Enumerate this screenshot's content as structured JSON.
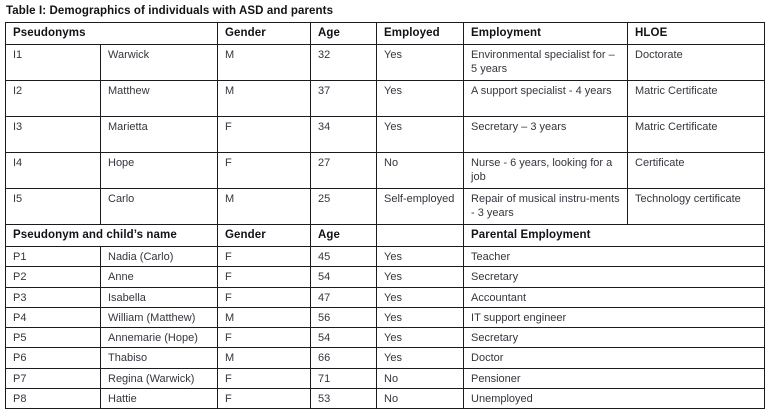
{
  "title": "Table I: Demographics of individuals with ASD and parents",
  "colors": {
    "background": "#ffffff",
    "border": "#1b1b1f",
    "header_text": "#121216",
    "body_text": "#35353d"
  },
  "table": {
    "header_individuals": {
      "pseudonyms": "Pseudonyms",
      "gender": "Gender",
      "age": "Age",
      "employed": "Employed",
      "employment": "Employment",
      "hloe": "HLOE"
    },
    "individuals": [
      {
        "id": "I1",
        "name": "Warwick",
        "gender": "M",
        "age": "32",
        "employed": "Yes",
        "employment": "Environmental specialist for – 5 years",
        "hloe": "Doctorate"
      },
      {
        "id": "I2",
        "name": "Matthew",
        "gender": "M",
        "age": "37",
        "employed": "Yes",
        "employment": "A support specialist - 4 years",
        "hloe": "Matric Certificate"
      },
      {
        "id": "I3",
        "name": "Marietta",
        "gender": "F",
        "age": "34",
        "employed": "Yes",
        "employment": "Secretary – 3 years",
        "hloe": "Matric Certificate"
      },
      {
        "id": "I4",
        "name": "Hope",
        "gender": "F",
        "age": "27",
        "employed": "No",
        "employment": "Nurse - 6 years, looking for a job",
        "hloe": "Certificate"
      },
      {
        "id": "I5",
        "name": "Carlo",
        "gender": "M",
        "age": "25",
        "employed": "Self-employed",
        "employment": "Repair of musical instru-ments - 3 years",
        "hloe": "Technology certificate"
      }
    ],
    "header_parents": {
      "pseudonym_child": "Pseudonym and child’s name",
      "gender": "Gender",
      "age": "Age",
      "employed": "",
      "parental_employment": "Parental Employment"
    },
    "parents": [
      {
        "id": "P1",
        "name": "Nadia (Carlo)",
        "gender": "F",
        "age": "45",
        "employed": "Yes",
        "employment": "Teacher"
      },
      {
        "id": "P2",
        "name": "Anne",
        "gender": "F",
        "age": "54",
        "employed": "Yes",
        "employment": "Secretary"
      },
      {
        "id": "P3",
        "name": "Isabella",
        "gender": "F",
        "age": "47",
        "employed": "Yes",
        "employment": "Accountant"
      },
      {
        "id": "P4",
        "name": "William (Matthew)",
        "gender": "M",
        "age": "56",
        "employed": "Yes",
        "employment": "IT support engineer"
      },
      {
        "id": "P5",
        "name": "Annemarie (Hope)",
        "gender": "F",
        "age": "54",
        "employed": "Yes",
        "employment": "Secretary"
      },
      {
        "id": "P6",
        "name": "Thabiso",
        "gender": "M",
        "age": "66",
        "employed": "Yes",
        "employment": "Doctor"
      },
      {
        "id": "P7",
        "name": "Regina (Warwick)",
        "gender": "F",
        "age": "71",
        "employed": "No",
        "employment": "Pensioner"
      },
      {
        "id": "P8",
        "name": "Hattie",
        "gender": "F",
        "age": "53",
        "employed": "No",
        "employment": "Unemployed"
      }
    ]
  }
}
